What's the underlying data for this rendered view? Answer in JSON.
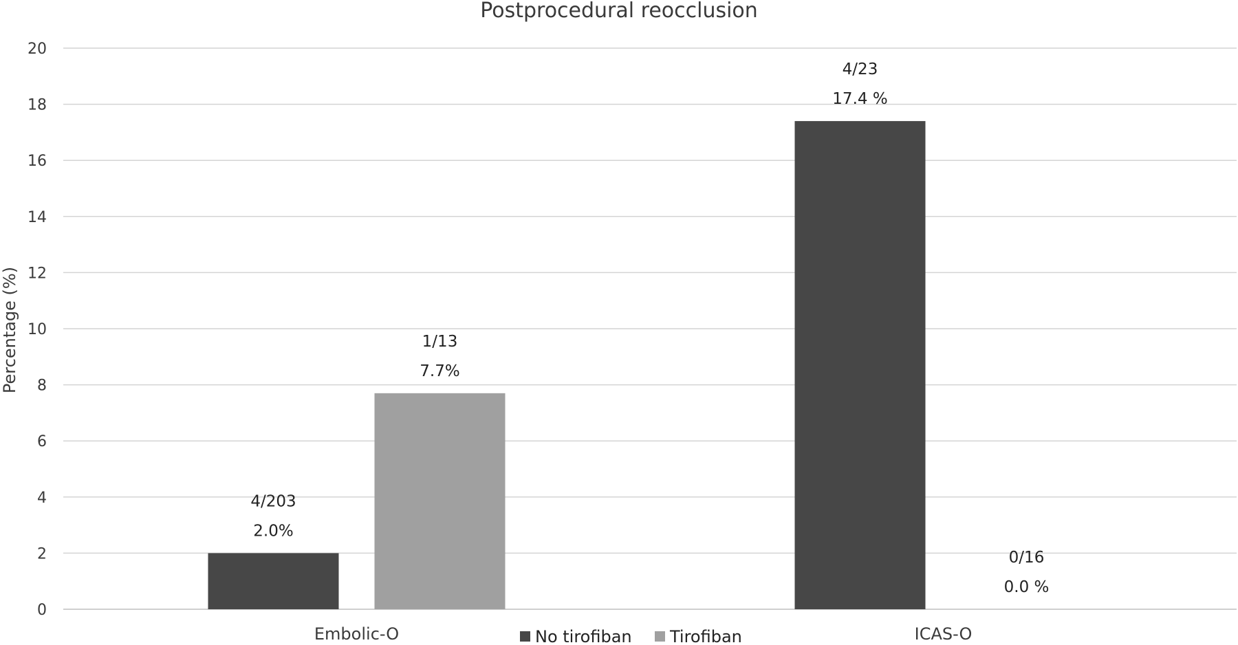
{
  "chart_data": {
    "type": "bar",
    "title": "Postprocedural reocclusion",
    "ylabel": "Percentage (%)",
    "xlabel": "",
    "ylim": [
      0,
      20
    ],
    "yticks": [
      "0",
      "2",
      "4",
      "6",
      "8",
      "10",
      "12",
      "14",
      "16",
      "18",
      "20"
    ],
    "categories": [
      "Embolic-O",
      "ICAS-O"
    ],
    "series": [
      {
        "name": "No tirofiban",
        "color": "#474747",
        "values": [
          2.0,
          17.4
        ],
        "labels_top": [
          "4/203",
          "4/23"
        ],
        "labels_bottom": [
          "2.0%",
          "17.4 %"
        ]
      },
      {
        "name": "Tirofiban",
        "color": "#a0a0a0",
        "values": [
          7.7,
          0.0
        ],
        "labels_top": [
          "1/13",
          "0/16"
        ],
        "labels_bottom": [
          "7.7%",
          "0.0 %"
        ]
      }
    ],
    "grid": true,
    "legend_position": "bottom"
  }
}
